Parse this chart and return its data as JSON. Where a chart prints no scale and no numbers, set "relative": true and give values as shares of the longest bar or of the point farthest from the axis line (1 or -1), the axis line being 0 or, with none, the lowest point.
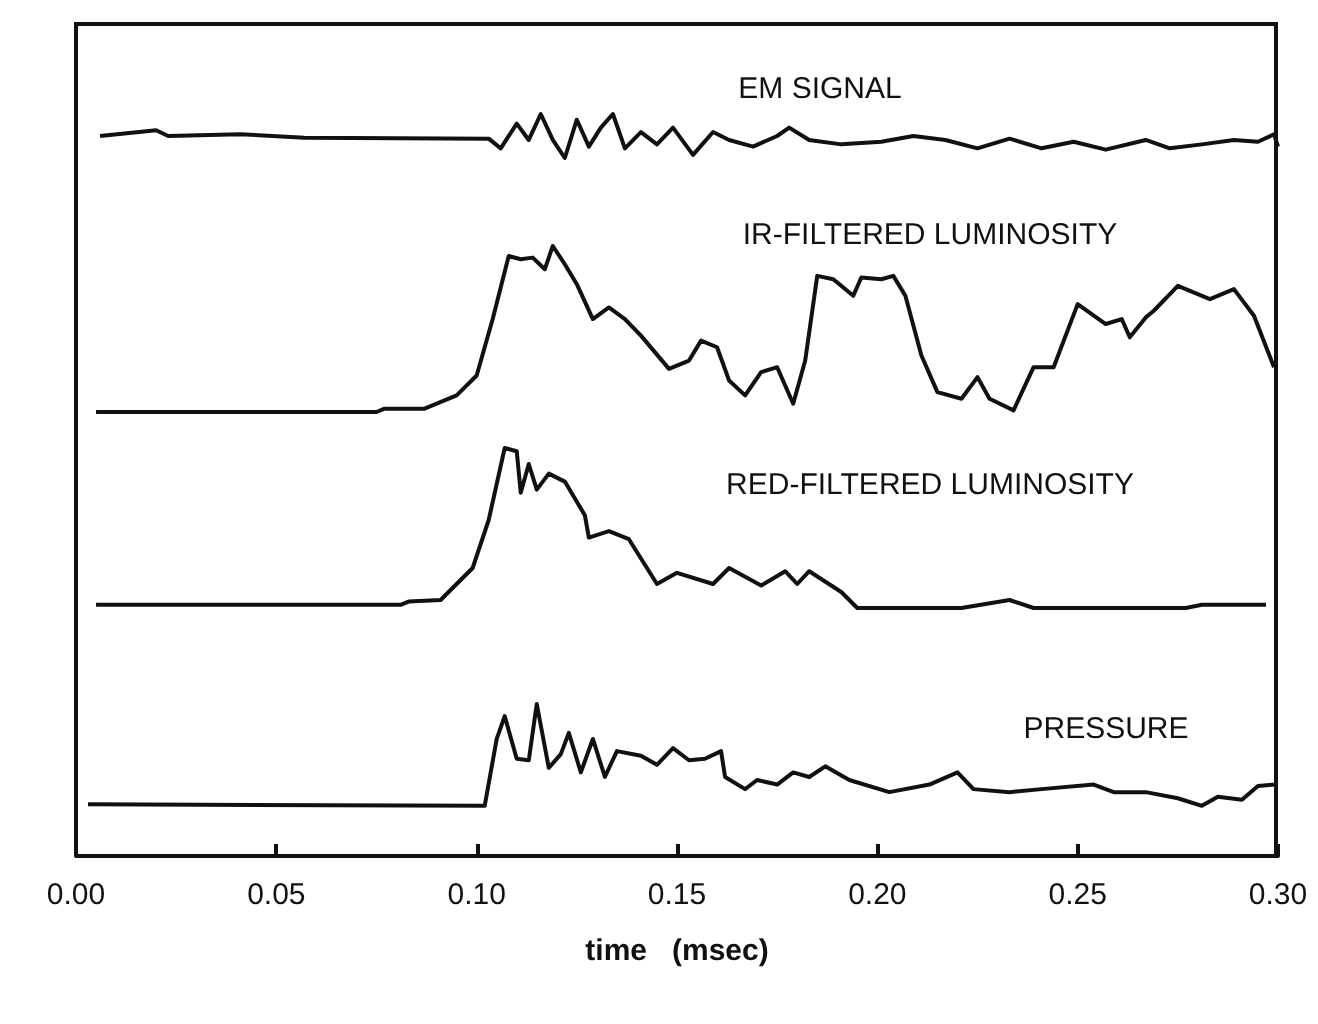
{
  "chart_data": [
    {
      "type": "line",
      "title": "EM SIGNAL",
      "relative": true,
      "xlim": [
        0,
        0.3
      ],
      "tick_labels": false,
      "x": [
        0.006,
        0.02,
        0.023,
        0.041,
        0.057,
        0.103,
        0.106,
        0.11,
        0.113,
        0.116,
        0.119,
        0.122,
        0.125,
        0.128,
        0.131,
        0.134,
        0.137,
        0.141,
        0.145,
        0.149,
        0.154,
        0.159,
        0.163,
        0.169,
        0.175,
        0.178,
        0.183,
        0.191,
        0.201,
        0.209,
        0.217,
        0.225,
        0.233,
        0.241,
        0.249,
        0.257,
        0.267,
        0.273,
        0.281,
        0.289,
        0.295,
        0.299,
        0.3
      ],
      "series": [
        {
          "color": "#111111",
          "values": [
            0.5,
            0.63,
            0.5,
            0.54,
            0.46,
            0.44,
            0.22,
            0.78,
            0.41,
            1,
            0.41,
            0,
            0.87,
            0.26,
            0.69,
            1,
            0.22,
            0.59,
            0.31,
            0.69,
            0.07,
            0.59,
            0.41,
            0.26,
            0.5,
            0.69,
            0.41,
            0.31,
            0.37,
            0.5,
            0.41,
            0.22,
            0.44,
            0.22,
            0.37,
            0.19,
            0.41,
            0.22,
            0.31,
            0.41,
            0.37,
            0.54,
            0.26
          ]
        }
      ]
    },
    {
      "type": "line",
      "title": "IR-FILTERED LUMINOSITY",
      "relative": true,
      "xlim": [
        0,
        0.3
      ],
      "tick_labels": false,
      "x": [
        0.005,
        0.075,
        0.077,
        0.087,
        0.095,
        0.1,
        0.104,
        0.108,
        0.111,
        0.114,
        0.117,
        0.119,
        0.122,
        0.125,
        0.129,
        0.133,
        0.137,
        0.141,
        0.148,
        0.153,
        0.156,
        0.16,
        0.163,
        0.167,
        0.171,
        0.175,
        0.179,
        0.182,
        0.185,
        0.189,
        0.194,
        0.196,
        0.201,
        0.204,
        0.207,
        0.211,
        0.215,
        0.221,
        0.225,
        0.228,
        0.234,
        0.239,
        0.244,
        0.25,
        0.257,
        0.261,
        0.263,
        0.267,
        0.269,
        0.275,
        0.283,
        0.289,
        0.294,
        0.299
      ],
      "series": [
        {
          "color": "#111111",
          "values": [
            0,
            0,
            0.02,
            0.02,
            0.1,
            0.22,
            0.56,
            0.94,
            0.92,
            0.93,
            0.86,
            1,
            0.89,
            0.77,
            0.56,
            0.63,
            0.56,
            0.46,
            0.26,
            0.31,
            0.43,
            0.39,
            0.19,
            0.1,
            0.24,
            0.27,
            0.05,
            0.31,
            0.82,
            0.8,
            0.7,
            0.81,
            0.8,
            0.82,
            0.7,
            0.34,
            0.12,
            0.08,
            0.21,
            0.08,
            0.01,
            0.27,
            0.27,
            0.65,
            0.53,
            0.56,
            0.45,
            0.57,
            0.61,
            0.76,
            0.68,
            0.74,
            0.58,
            0.27
          ]
        }
      ]
    },
    {
      "type": "line",
      "title": "RED-FILTERED LUMINOSITY",
      "relative": true,
      "xlim": [
        0,
        0.3
      ],
      "tick_labels": false,
      "x": [
        0.005,
        0.081,
        0.083,
        0.091,
        0.099,
        0.103,
        0.107,
        0.11,
        0.111,
        0.113,
        0.115,
        0.118,
        0.122,
        0.127,
        0.128,
        0.133,
        0.138,
        0.145,
        0.15,
        0.159,
        0.163,
        0.171,
        0.177,
        0.18,
        0.183,
        0.191,
        0.195,
        0.201,
        0.221,
        0.233,
        0.239,
        0.277,
        0.281,
        0.297
      ],
      "series": [
        {
          "color": "#111111",
          "values": [
            0.02,
            0.02,
            0.04,
            0.05,
            0.25,
            0.55,
            1,
            0.98,
            0.72,
            0.9,
            0.74,
            0.84,
            0.79,
            0.58,
            0.44,
            0.48,
            0.43,
            0.15,
            0.22,
            0.15,
            0.25,
            0.14,
            0.23,
            0.15,
            0.23,
            0.1,
            0,
            0,
            0,
            0.05,
            0,
            0,
            0.02,
            0.02
          ]
        }
      ]
    },
    {
      "type": "line",
      "title": "PRESSURE",
      "relative": true,
      "xlim": [
        0,
        0.3
      ],
      "tick_labels": "x",
      "xlabel": "time   (msec)",
      "xticks": [
        {
          "value": 0,
          "label": "0.00"
        },
        {
          "value": 0.05,
          "label": "0.05"
        },
        {
          "value": 0.1,
          "label": "0.10"
        },
        {
          "value": 0.15,
          "label": "0.15"
        },
        {
          "value": 0.2,
          "label": "0.20"
        },
        {
          "value": 0.25,
          "label": "0.25"
        },
        {
          "value": 0.3,
          "label": "0.30"
        }
      ],
      "x": [
        0.003,
        0.102,
        0.105,
        0.107,
        0.11,
        0.113,
        0.115,
        0.118,
        0.121,
        0.123,
        0.126,
        0.129,
        0.132,
        0.135,
        0.141,
        0.145,
        0.149,
        0.153,
        0.157,
        0.161,
        0.162,
        0.167,
        0.17,
        0.175,
        0.179,
        0.183,
        0.187,
        0.193,
        0.203,
        0.213,
        0.22,
        0.224,
        0.233,
        0.241,
        0.254,
        0.259,
        0.267,
        0.275,
        0.281,
        0.285,
        0.291,
        0.295,
        0.299
      ],
      "series": [
        {
          "color": "#111111",
          "values": [
            0.34,
            0.33,
            0.77,
            0.92,
            0.64,
            0.63,
            1,
            0.58,
            0.67,
            0.81,
            0.55,
            0.77,
            0.52,
            0.69,
            0.66,
            0.6,
            0.71,
            0.63,
            0.64,
            0.69,
            0.52,
            0.44,
            0.5,
            0.47,
            0.55,
            0.52,
            0.59,
            0.5,
            0.42,
            0.47,
            0.55,
            0.44,
            0.42,
            0.44,
            0.47,
            0.42,
            0.42,
            0.38,
            0.33,
            0.39,
            0.37,
            0.46,
            0.47
          ]
        }
      ]
    }
  ]
}
